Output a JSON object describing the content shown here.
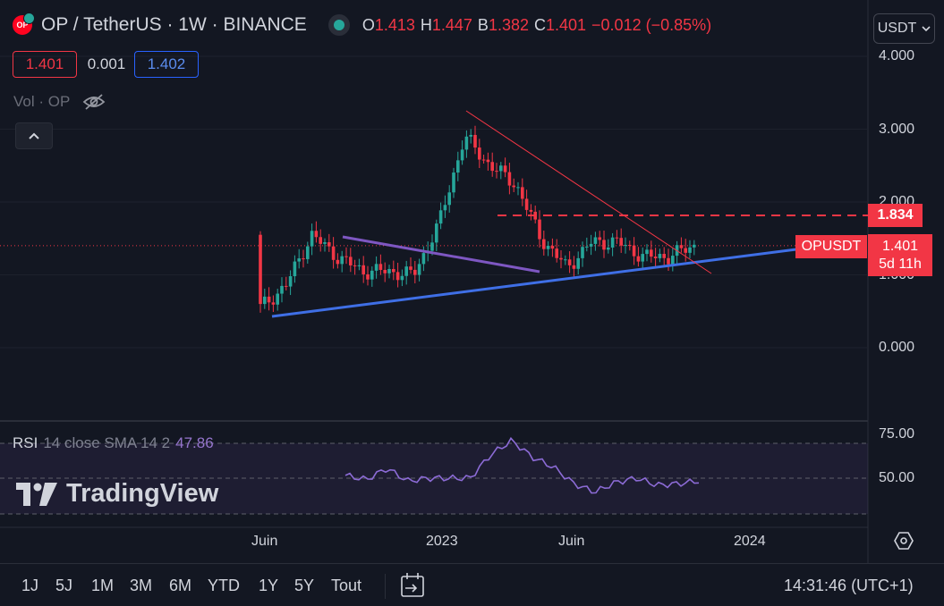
{
  "header": {
    "symbol": "OP / TetherUS · 1W · BINANCE",
    "logo_text": "OP",
    "ohlc": {
      "o_label": "O",
      "o": "1.413",
      "h_label": "H",
      "h": "1.447",
      "b_label": "B",
      "b": "1.382",
      "c_label": "C",
      "c": "1.401",
      "change": "−0.012 (−0.85%)"
    },
    "bid": "1.401",
    "spread": "0.001",
    "ask": "1.402",
    "volume_label": "Vol · OP",
    "currency_button": "USDT"
  },
  "price_axis": {
    "ticks": [
      "4.000",
      "3.000",
      "2.000",
      "1.000",
      "0.000"
    ]
  },
  "price_tags": {
    "level_line": "1.834",
    "symbol": "OPUSDT",
    "last_price": "1.401",
    "countdown": "5d 11h"
  },
  "rsi": {
    "name": "RSI",
    "params": "14 close SMA 14 2",
    "value": "47.86",
    "ticks": [
      "75.00",
      "50.00"
    ]
  },
  "watermark": "TradingView",
  "time_axis": {
    "labels": [
      "Juin",
      "2023",
      "Juin",
      "2024"
    ]
  },
  "bottom_bar": {
    "ranges": [
      "1J",
      "5J",
      "1M",
      "3M",
      "6M",
      "YTD",
      "1Y",
      "5Y",
      "Tout"
    ],
    "clock": "14:31:46 (UTC+1)"
  },
  "colors": {
    "up": "#26a69a",
    "down": "#f23645",
    "support_line": "#3f6fe6",
    "channel_line": "#7e57c2",
    "rsi_line": "#8c6bd6",
    "background": "#131722"
  },
  "chart_data": {
    "type": "candlestick",
    "interval": "1W",
    "y_range": [
      0,
      4
    ],
    "x": [
      "2022-06",
      "2022-07",
      "2022-08",
      "2022-09",
      "2022-10",
      "2022-11",
      "2022-12",
      "2023-01",
      "2023-02",
      "2023-03",
      "2023-04",
      "2023-05",
      "2023-06",
      "2023-07",
      "2023-08",
      "2023-09",
      "2023-10",
      "2023-11"
    ],
    "close_approx": [
      0.55,
      0.85,
      1.55,
      1.25,
      1.05,
      1.05,
      1.0,
      1.7,
      2.9,
      2.5,
      2.25,
      1.5,
      1.1,
      1.45,
      1.45,
      1.25,
      1.25,
      1.4
    ],
    "rsi_approx": [
      52,
      49,
      57,
      48,
      50,
      50,
      50,
      67,
      77,
      65,
      58,
      46,
      40,
      47,
      50,
      45,
      46,
      48
    ],
    "rsi_range": [
      30,
      80
    ],
    "horizontal_level": 1.834,
    "last_price": 1.401
  }
}
